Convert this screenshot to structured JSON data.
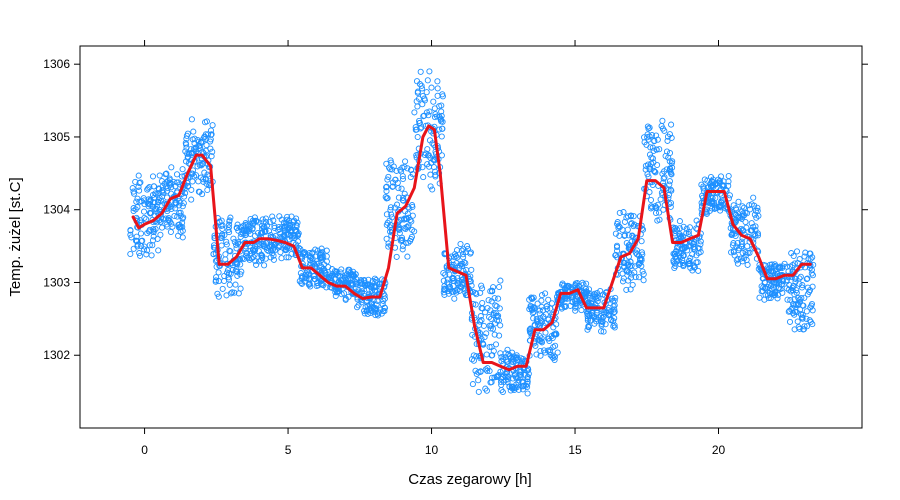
{
  "chart_data": {
    "type": "scatter",
    "xlabel": "Czas zegarowy [h]",
    "ylabel": "Temp. żużel [st.C]",
    "xlim": [
      -2.25,
      25.0
    ],
    "ylim": [
      1301.0,
      1306.25
    ],
    "xticks": [
      0,
      5,
      10,
      15,
      20
    ],
    "yticks": [
      1302,
      1303,
      1304,
      1305,
      1306
    ],
    "grid": false,
    "colors": {
      "points": "#1e90ff",
      "smooth": "#e8141a",
      "frame": "#000000"
    },
    "series": [
      {
        "type": "scatter",
        "marker": "open-circle",
        "clusters": [
          {
            "x": [
              -0.5,
              0.5
            ],
            "y": [
              1303.25,
              1304.6
            ]
          },
          {
            "x": [
              0.5,
              1.4
            ],
            "y": [
              1303.6,
              1304.6
            ]
          },
          {
            "x": [
              1.4,
              2.4
            ],
            "y": [
              1304.1,
              1305.3
            ]
          },
          {
            "x": [
              2.4,
              3.4
            ],
            "y": [
              1302.75,
              1304.0
            ]
          },
          {
            "x": [
              3.4,
              4.4
            ],
            "y": [
              1303.2,
              1303.95
            ]
          },
          {
            "x": [
              4.4,
              5.4
            ],
            "y": [
              1303.3,
              1303.95
            ]
          },
          {
            "x": [
              5.4,
              6.4
            ],
            "y": [
              1302.9,
              1303.5
            ]
          },
          {
            "x": [
              6.4,
              7.4
            ],
            "y": [
              1302.75,
              1303.2
            ]
          },
          {
            "x": [
              7.4,
              8.4
            ],
            "y": [
              1302.5,
              1303.1
            ]
          },
          {
            "x": [
              8.4,
              9.4
            ],
            "y": [
              1303.25,
              1304.8
            ]
          },
          {
            "x": [
              9.4,
              10.4
            ],
            "y": [
              1304.2,
              1305.95
            ]
          },
          {
            "x": [
              10.4,
              11.4
            ],
            "y": [
              1302.75,
              1303.55
            ]
          },
          {
            "x": [
              11.4,
              12.4
            ],
            "y": [
              1301.4,
              1303.2
            ]
          },
          {
            "x": [
              12.4,
              13.4
            ],
            "y": [
              1301.45,
              1302.1
            ]
          },
          {
            "x": [
              13.4,
              14.4
            ],
            "y": [
              1301.9,
              1302.9
            ]
          },
          {
            "x": [
              14.4,
              15.4
            ],
            "y": [
              1302.6,
              1303.05
            ]
          },
          {
            "x": [
              15.4,
              16.4
            ],
            "y": [
              1302.3,
              1302.95
            ]
          },
          {
            "x": [
              16.4,
              17.4
            ],
            "y": [
              1302.85,
              1304.0
            ]
          },
          {
            "x": [
              17.4,
              18.4
            ],
            "y": [
              1303.8,
              1305.3
            ]
          },
          {
            "x": [
              18.4,
              19.4
            ],
            "y": [
              1303.1,
              1303.9
            ]
          },
          {
            "x": [
              19.4,
              20.4
            ],
            "y": [
              1303.9,
              1304.5
            ]
          },
          {
            "x": [
              20.4,
              21.4
            ],
            "y": [
              1303.2,
              1304.2
            ]
          },
          {
            "x": [
              21.4,
              22.4
            ],
            "y": [
              1302.75,
              1303.3
            ]
          },
          {
            "x": [
              22.4,
              23.3
            ],
            "y": [
              1302.25,
              1303.5
            ]
          }
        ]
      },
      {
        "type": "line",
        "x": [
          -0.4,
          -0.2,
          0,
          0.3,
          0.6,
          0.9,
          1.2,
          1.5,
          1.8,
          2.0,
          2.3,
          2.6,
          2.9,
          3.2,
          3.5,
          3.8,
          4.0,
          4.3,
          4.6,
          4.9,
          5.2,
          5.5,
          5.8,
          6.1,
          6.4,
          6.7,
          7.0,
          7.3,
          7.6,
          7.9,
          8.2,
          8.5,
          8.8,
          9.1,
          9.4,
          9.7,
          9.9,
          10.1,
          10.3,
          10.6,
          10.9,
          11.2,
          11.5,
          11.8,
          12.1,
          12.4,
          12.7,
          13.0,
          13.3,
          13.6,
          13.9,
          14.2,
          14.5,
          14.8,
          15.1,
          15.4,
          15.7,
          16.0,
          16.3,
          16.6,
          16.9,
          17.2,
          17.5,
          17.8,
          18.1,
          18.4,
          18.7,
          19.0,
          19.3,
          19.6,
          19.9,
          20.2,
          20.5,
          20.8,
          21.1,
          21.4,
          21.7,
          22.0,
          22.3,
          22.6,
          22.9,
          23.2
        ],
        "y": [
          1303.9,
          1303.75,
          1303.8,
          1303.85,
          1303.95,
          1304.15,
          1304.2,
          1304.5,
          1304.75,
          1304.75,
          1304.6,
          1303.25,
          1303.25,
          1303.35,
          1303.55,
          1303.55,
          1303.6,
          1303.6,
          1303.58,
          1303.55,
          1303.5,
          1303.2,
          1303.2,
          1303.1,
          1303.0,
          1302.95,
          1302.95,
          1302.85,
          1302.78,
          1302.8,
          1302.8,
          1303.2,
          1303.95,
          1304.05,
          1304.3,
          1305.0,
          1305.15,
          1305.1,
          1304.5,
          1303.2,
          1303.15,
          1303.1,
          1302.4,
          1301.9,
          1301.9,
          1301.85,
          1301.8,
          1301.85,
          1301.85,
          1302.35,
          1302.35,
          1302.45,
          1302.85,
          1302.85,
          1302.9,
          1302.65,
          1302.65,
          1302.65,
          1303.0,
          1303.35,
          1303.4,
          1303.6,
          1304.4,
          1304.4,
          1304.3,
          1303.55,
          1303.55,
          1303.6,
          1303.65,
          1304.25,
          1304.25,
          1304.25,
          1303.8,
          1303.65,
          1303.6,
          1303.35,
          1303.05,
          1303.05,
          1303.1,
          1303.1,
          1303.25,
          1303.25
        ]
      }
    ]
  }
}
